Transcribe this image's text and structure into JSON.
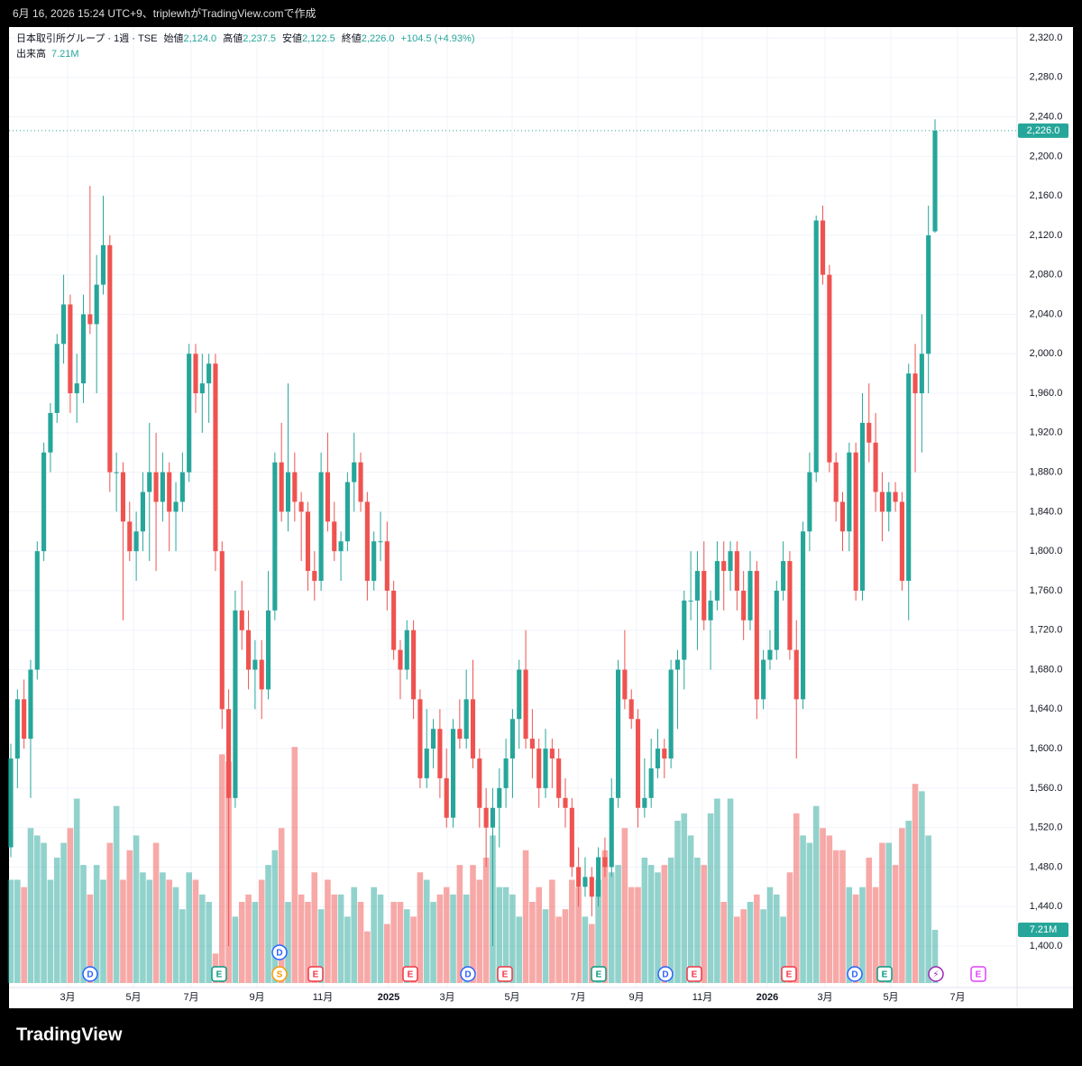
{
  "top_caption": "6月 16, 2026 15:24 UTC+9、triplewhがTradingView.comで作成",
  "header": {
    "symbol": "日本取引所グループ · 1週 · TSE",
    "open_label": "始値",
    "open": "2,124.0",
    "high_label": "高値",
    "high": "2,237.5",
    "low_label": "安値",
    "low": "2,122.5",
    "close_label": "終値",
    "close": "2,226.0",
    "change": "+104.5 (+4.93%)",
    "volume_label": "出来高",
    "volume": "7.21M"
  },
  "footer": "TradingView",
  "chart_data": {
    "type": "candlestick",
    "up_color": "#26a69a",
    "down_color": "#ef5350",
    "grid": true,
    "last_price_label": "2,226.0",
    "last_volume_label": "7.21M",
    "ylim": [
      1400,
      2320
    ],
    "yticks": [
      {
        "value": 1400,
        "label": "1,400.0"
      },
      {
        "value": 1440,
        "label": "1,440.0"
      },
      {
        "value": 1480,
        "label": "1,480.0"
      },
      {
        "value": 1520,
        "label": "1,520.0"
      },
      {
        "value": 1560,
        "label": "1,560.0"
      },
      {
        "value": 1600,
        "label": "1,600.0"
      },
      {
        "value": 1640,
        "label": "1,640.0"
      },
      {
        "value": 1680,
        "label": "1,680.0"
      },
      {
        "value": 1720,
        "label": "1,720.0"
      },
      {
        "value": 1760,
        "label": "1,760.0"
      },
      {
        "value": 1800,
        "label": "1,800.0"
      },
      {
        "value": 1840,
        "label": "1,840.0"
      },
      {
        "value": 1880,
        "label": "1,880.0"
      },
      {
        "value": 1920,
        "label": "1,920.0"
      },
      {
        "value": 1960,
        "label": "1,960.0"
      },
      {
        "value": 2000,
        "label": "2,000.0"
      },
      {
        "value": 2040,
        "label": "2,040.0"
      },
      {
        "value": 2080,
        "label": "2,080.0"
      },
      {
        "value": 2120,
        "label": "2,120.0"
      },
      {
        "value": 2160,
        "label": "2,160.0"
      },
      {
        "value": 2200,
        "label": "2,200.0"
      },
      {
        "value": 2240,
        "label": "2,240.0"
      },
      {
        "value": 2280,
        "label": "2,280.0"
      },
      {
        "value": 2320,
        "label": "2,320.0"
      }
    ],
    "xlabels": [
      "3月",
      "5月",
      "7月",
      "9月",
      "11月",
      "2025",
      "3月",
      "5月",
      "7月",
      "9月",
      "11月",
      "2026",
      "3月",
      "5月",
      "7月"
    ],
    "events": [
      "D",
      "E",
      "D",
      "S",
      "E",
      "E",
      "D",
      "E",
      "E",
      "D",
      "E",
      "E",
      "D",
      "E",
      "⚡",
      "E"
    ],
    "ohlc": [
      [
        1500,
        1605,
        1490,
        1590
      ],
      [
        1590,
        1660,
        1560,
        1650
      ],
      [
        1650,
        1670,
        1600,
        1610
      ],
      [
        1610,
        1690,
        1550,
        1680
      ],
      [
        1680,
        1810,
        1670,
        1800
      ],
      [
        1800,
        1910,
        1790,
        1900
      ],
      [
        1900,
        1950,
        1880,
        1940
      ],
      [
        1940,
        2020,
        1930,
        2010
      ],
      [
        2010,
        2080,
        1990,
        2050
      ],
      [
        2050,
        2060,
        1940,
        1960
      ],
      [
        1960,
        2000,
        1930,
        1970
      ],
      [
        1970,
        2060,
        1950,
        2040
      ],
      [
        2040,
        2170,
        2020,
        2030
      ],
      [
        2030,
        2100,
        1960,
        2070
      ],
      [
        2070,
        2160,
        2060,
        2110
      ],
      [
        2110,
        2120,
        1860,
        1880
      ],
      [
        1880,
        1900,
        1840,
        1880
      ],
      [
        1880,
        1890,
        1730,
        1830
      ],
      [
        1830,
        1850,
        1790,
        1800
      ],
      [
        1800,
        1840,
        1770,
        1820
      ],
      [
        1820,
        1880,
        1800,
        1860
      ],
      [
        1860,
        1930,
        1790,
        1880
      ],
      [
        1880,
        1920,
        1780,
        1850
      ],
      [
        1850,
        1900,
        1830,
        1880
      ],
      [
        1880,
        1890,
        1800,
        1840
      ],
      [
        1840,
        1870,
        1800,
        1850
      ],
      [
        1850,
        1900,
        1840,
        1880
      ],
      [
        1880,
        2010,
        1870,
        2000
      ],
      [
        2000,
        2010,
        1940,
        1960
      ],
      [
        1960,
        2000,
        1920,
        1970
      ],
      [
        1970,
        2000,
        1930,
        1990
      ],
      [
        1990,
        2000,
        1780,
        1800
      ],
      [
        1800,
        1810,
        1620,
        1640
      ],
      [
        1640,
        1660,
        1400,
        1550
      ],
      [
        1550,
        1760,
        1540,
        1740
      ],
      [
        1740,
        1770,
        1700,
        1720
      ],
      [
        1720,
        1740,
        1660,
        1680
      ],
      [
        1680,
        1710,
        1640,
        1690
      ],
      [
        1690,
        1710,
        1630,
        1660
      ],
      [
        1660,
        1780,
        1650,
        1740
      ],
      [
        1740,
        1900,
        1730,
        1890
      ],
      [
        1890,
        1930,
        1830,
        1840
      ],
      [
        1840,
        1970,
        1820,
        1880
      ],
      [
        1880,
        1900,
        1830,
        1850
      ],
      [
        1850,
        1860,
        1790,
        1840
      ],
      [
        1840,
        1850,
        1760,
        1780
      ],
      [
        1780,
        1800,
        1750,
        1770
      ],
      [
        1770,
        1900,
        1760,
        1880
      ],
      [
        1880,
        1920,
        1820,
        1830
      ],
      [
        1830,
        1850,
        1790,
        1800
      ],
      [
        1800,
        1820,
        1770,
        1810
      ],
      [
        1810,
        1880,
        1800,
        1870
      ],
      [
        1870,
        1920,
        1840,
        1890
      ],
      [
        1890,
        1900,
        1840,
        1850
      ],
      [
        1850,
        1860,
        1750,
        1770
      ],
      [
        1770,
        1820,
        1760,
        1810
      ],
      [
        1810,
        1840,
        1790,
        1810
      ],
      [
        1810,
        1830,
        1740,
        1760
      ],
      [
        1760,
        1770,
        1690,
        1700
      ],
      [
        1700,
        1710,
        1650,
        1680
      ],
      [
        1680,
        1730,
        1670,
        1720
      ],
      [
        1720,
        1730,
        1630,
        1650
      ],
      [
        1650,
        1660,
        1560,
        1570
      ],
      [
        1570,
        1640,
        1560,
        1600
      ],
      [
        1600,
        1630,
        1580,
        1620
      ],
      [
        1620,
        1640,
        1550,
        1570
      ],
      [
        1570,
        1600,
        1520,
        1530
      ],
      [
        1530,
        1630,
        1520,
        1620
      ],
      [
        1620,
        1650,
        1600,
        1610
      ],
      [
        1610,
        1680,
        1600,
        1650
      ],
      [
        1650,
        1690,
        1580,
        1590
      ],
      [
        1590,
        1600,
        1520,
        1540
      ],
      [
        1540,
        1560,
        1480,
        1520
      ],
      [
        1520,
        1560,
        1400,
        1540
      ],
      [
        1540,
        1580,
        1500,
        1560
      ],
      [
        1560,
        1610,
        1540,
        1590
      ],
      [
        1590,
        1640,
        1550,
        1630
      ],
      [
        1630,
        1690,
        1600,
        1680
      ],
      [
        1680,
        1720,
        1600,
        1610
      ],
      [
        1610,
        1640,
        1570,
        1600
      ],
      [
        1600,
        1610,
        1540,
        1560
      ],
      [
        1560,
        1620,
        1550,
        1600
      ],
      [
        1600,
        1610,
        1560,
        1590
      ],
      [
        1590,
        1600,
        1540,
        1550
      ],
      [
        1550,
        1570,
        1520,
        1540
      ],
      [
        1540,
        1550,
        1470,
        1480
      ],
      [
        1480,
        1500,
        1440,
        1460
      ],
      [
        1460,
        1490,
        1450,
        1470
      ],
      [
        1470,
        1480,
        1430,
        1450
      ],
      [
        1450,
        1500,
        1440,
        1490
      ],
      [
        1490,
        1510,
        1470,
        1480
      ],
      [
        1480,
        1570,
        1470,
        1550
      ],
      [
        1550,
        1690,
        1540,
        1680
      ],
      [
        1680,
        1720,
        1640,
        1650
      ],
      [
        1650,
        1660,
        1620,
        1630
      ],
      [
        1630,
        1640,
        1520,
        1540
      ],
      [
        1540,
        1590,
        1530,
        1550
      ],
      [
        1550,
        1610,
        1540,
        1580
      ],
      [
        1580,
        1620,
        1570,
        1600
      ],
      [
        1600,
        1610,
        1570,
        1590
      ],
      [
        1590,
        1690,
        1580,
        1680
      ],
      [
        1680,
        1700,
        1620,
        1690
      ],
      [
        1690,
        1760,
        1660,
        1750
      ],
      [
        1750,
        1800,
        1730,
        1750
      ],
      [
        1750,
        1800,
        1700,
        1780
      ],
      [
        1780,
        1810,
        1720,
        1730
      ],
      [
        1730,
        1760,
        1680,
        1750
      ],
      [
        1750,
        1810,
        1740,
        1790
      ],
      [
        1790,
        1810,
        1740,
        1780
      ],
      [
        1780,
        1810,
        1760,
        1800
      ],
      [
        1800,
        1810,
        1740,
        1760
      ],
      [
        1760,
        1780,
        1710,
        1730
      ],
      [
        1730,
        1800,
        1720,
        1780
      ],
      [
        1780,
        1790,
        1630,
        1650
      ],
      [
        1650,
        1700,
        1640,
        1690
      ],
      [
        1690,
        1720,
        1680,
        1700
      ],
      [
        1700,
        1770,
        1690,
        1760
      ],
      [
        1760,
        1810,
        1750,
        1790
      ],
      [
        1790,
        1800,
        1690,
        1700
      ],
      [
        1700,
        1730,
        1590,
        1650
      ],
      [
        1650,
        1830,
        1640,
        1820
      ],
      [
        1820,
        1900,
        1800,
        1880
      ],
      [
        1880,
        2140,
        1870,
        2135
      ],
      [
        2135,
        2150,
        2070,
        2080
      ],
      [
        2080,
        2090,
        1880,
        1890
      ],
      [
        1890,
        1900,
        1830,
        1850
      ],
      [
        1850,
        1860,
        1800,
        1820
      ],
      [
        1820,
        1910,
        1800,
        1900
      ],
      [
        1900,
        1910,
        1750,
        1760
      ],
      [
        1760,
        1960,
        1750,
        1930
      ],
      [
        1930,
        1970,
        1890,
        1910
      ],
      [
        1910,
        1940,
        1840,
        1860
      ],
      [
        1860,
        1880,
        1810,
        1840
      ],
      [
        1840,
        1870,
        1820,
        1860
      ],
      [
        1860,
        1870,
        1840,
        1850
      ],
      [
        1850,
        1860,
        1760,
        1770
      ],
      [
        1770,
        1990,
        1730,
        1980
      ],
      [
        1980,
        2010,
        1880,
        1960
      ],
      [
        1960,
        2040,
        1900,
        2000
      ],
      [
        2000,
        2150,
        1960,
        2120
      ],
      [
        2124,
        2237.5,
        2122.5,
        2226
      ]
    ],
    "volume": [
      14,
      14,
      13,
      21,
      20,
      19,
      14,
      17,
      19,
      21,
      25,
      16,
      12,
      16,
      14,
      19,
      24,
      14,
      18,
      20,
      15,
      14,
      19,
      15,
      14,
      13,
      10,
      15,
      14,
      12,
      11,
      4,
      31,
      30,
      9,
      11,
      12,
      11,
      14,
      16,
      18,
      21,
      11,
      32,
      12,
      11,
      15,
      10,
      14,
      12,
      12,
      9,
      13,
      11,
      7,
      13,
      12,
      8,
      11,
      11,
      10,
      9,
      15,
      14,
      11,
      12,
      13,
      12,
      16,
      12,
      16,
      14,
      17,
      20,
      13,
      13,
      12,
      9,
      18,
      11,
      13,
      10,
      14,
      9,
      10,
      14,
      13,
      9,
      8,
      14,
      18,
      15,
      16,
      21,
      13,
      13,
      17,
      16,
      15,
      16,
      17,
      22,
      23,
      20,
      17,
      16,
      23,
      25,
      11,
      25,
      9,
      10,
      11,
      12,
      10,
      13,
      12,
      9,
      15,
      23,
      20,
      19,
      24,
      21,
      20,
      18,
      18,
      13,
      12,
      13,
      17,
      13,
      19,
      19,
      16,
      21,
      22,
      27,
      26,
      20,
      7.21
    ]
  }
}
